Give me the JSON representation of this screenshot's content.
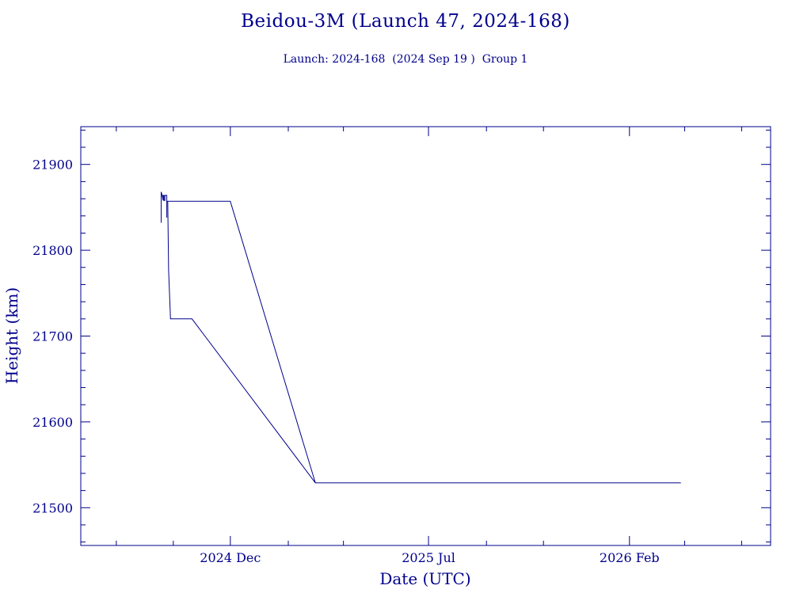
{
  "chart_data": {
    "type": "line",
    "title": "Beidou-3M (Launch 47, 2024-168)",
    "subtitle": "Launch: 2024-168  (2024 Sep 19 )  Group 1",
    "xlabel": "Date (UTC)",
    "ylabel": "Height (km)",
    "ylim": [
      21456,
      21944
    ],
    "xlim": [
      "2024-06-24",
      "2026-07-02"
    ],
    "x_ticks": [
      {
        "date": "2024-12-01",
        "label": "2024 Dec"
      },
      {
        "date": "2025-07-01",
        "label": "2025 Jul"
      },
      {
        "date": "2026-02-01",
        "label": "2026 Feb"
      }
    ],
    "y_ticks": [
      21500,
      21600,
      21700,
      21800,
      21900
    ],
    "series": [
      {
        "name": "",
        "color": "#00008b",
        "points": [
          [
            "2024-09-18",
            21832
          ],
          [
            "2024-09-18",
            21868
          ],
          [
            "2024-09-19",
            21864
          ],
          [
            "2024-09-20",
            21858
          ],
          [
            "2024-09-20",
            21864
          ],
          [
            "2024-09-21",
            21864
          ],
          [
            "2024-09-21",
            21858
          ],
          [
            "2024-09-22",
            21858
          ],
          [
            "2024-09-22",
            21864
          ],
          [
            "2024-09-24",
            21864
          ],
          [
            "2024-09-24",
            21838
          ],
          [
            "2024-09-24",
            21857
          ],
          [
            "2024-12-01",
            21857
          ],
          [
            "2025-03-02",
            21529
          ],
          [
            "2024-10-21",
            21720
          ],
          [
            "2024-09-28",
            21720
          ],
          [
            "2024-09-26",
            21776
          ],
          [
            "2024-09-25",
            21857
          ],
          [
            "2024-09-26",
            21776
          ],
          [
            "2024-09-28",
            21720
          ],
          [
            "2024-10-21",
            21720
          ],
          [
            "2025-03-02",
            21529
          ],
          [
            "2026-03-28",
            21529
          ]
        ]
      }
    ]
  }
}
